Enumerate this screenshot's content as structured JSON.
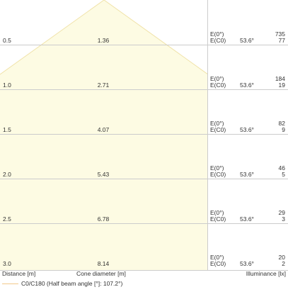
{
  "chart_data": {
    "type": "beam-cone-diagram",
    "title": "",
    "xlabel": "Distance [m]",
    "center_label": "Cone diameter [m]",
    "right_label": "Illuminance [lx]",
    "legend": [
      {
        "label": "C0/C180 (Half beam angle [°]: 107.2°)",
        "color": "#f2c98a"
      }
    ],
    "half_beam_angle_deg": 107.2,
    "e_center_label": "E(0°)",
    "e_c0_label": "E(C0)",
    "angle_label": "53.6°",
    "rows": [
      {
        "distance": "0.5",
        "diameter": "1.36",
        "e0": "735",
        "ec0": "77"
      },
      {
        "distance": "1.0",
        "diameter": "2.71",
        "e0": "184",
        "ec0": "19"
      },
      {
        "distance": "1.5",
        "diameter": "4.07",
        "e0": "82",
        "ec0": "9"
      },
      {
        "distance": "2.0",
        "diameter": "5.43",
        "e0": "46",
        "ec0": "5"
      },
      {
        "distance": "2.5",
        "diameter": "6.78",
        "e0": "29",
        "ec0": "3"
      },
      {
        "distance": "3.0",
        "diameter": "8.14",
        "e0": "20",
        "ec0": "2"
      }
    ],
    "colors": {
      "cone_fill": "#fdfbe3",
      "cone_edge": "#f0e2a8",
      "grid": "#cccccc",
      "text": "#333333"
    }
  }
}
